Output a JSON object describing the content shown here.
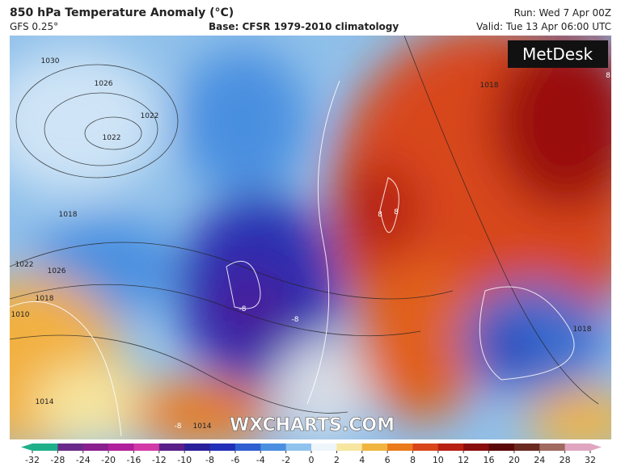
{
  "header": {
    "title": "850 hPa Temperature Anomaly (°C)",
    "model": "GFS 0.25°",
    "base": "Base: CFSR 1979-2010 climatology",
    "run": "Run: Wed 7 Apr 00Z",
    "valid": "Valid: Tue 13 Apr 06:00 UTC"
  },
  "logo": "MetDesk",
  "watermark": "WXCHARTS.COM",
  "map_labels": [
    "1030",
    "1026",
    "1022",
    "1022",
    "1018",
    "1022",
    "1026",
    "1018",
    "1010",
    "1014",
    "1014",
    "1018",
    "1018",
    "-8",
    "-8",
    "-8",
    "8",
    "8",
    "8"
  ],
  "colorbar": {
    "ticks": [
      -32,
      -28,
      -24,
      -20,
      -16,
      -12,
      -10,
      -8,
      -6,
      -4,
      -2,
      0,
      2,
      4,
      6,
      8,
      10,
      12,
      16,
      20,
      24,
      28,
      32
    ],
    "colors": [
      "#1fb08a",
      "#6a2a8a",
      "#8a1f8f",
      "#b0209a",
      "#d23aa8",
      "#5a1f88",
      "#2a1f9a",
      "#2330b8",
      "#2f5fd0",
      "#4a8fe0",
      "#8fc3ee",
      "#eef5fb",
      "#f6e6a0",
      "#f1b440",
      "#ea7a1c",
      "#d8461a",
      "#b82012",
      "#8a0e0e",
      "#5a0808",
      "#6a2a20",
      "#a06a60",
      "#e0a6c0"
    ]
  }
}
